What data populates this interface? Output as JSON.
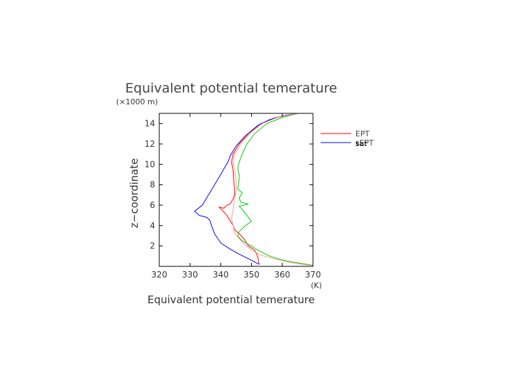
{
  "chart_data": {
    "type": "line",
    "title": "Equivalent potential temerature",
    "xlabel": "Equivalent potential temerature",
    "ylabel": "z−coordinate",
    "x_unit": "(K)",
    "y_unit": "(×1000 m)",
    "xlim": [
      320,
      370
    ],
    "ylim": [
      0,
      15
    ],
    "x_ticks": [
      320,
      330,
      340,
      350,
      360,
      370
    ],
    "y_ticks": [
      2,
      4,
      6,
      8,
      10,
      12,
      14
    ],
    "grid": false,
    "legend_position": "right",
    "series": [
      {
        "name": "EPT",
        "color": "#ff0000",
        "points": [
          [
            352.5,
            0.2
          ],
          [
            352,
            1.0
          ],
          [
            351,
            1.6
          ],
          [
            349,
            2.0
          ],
          [
            348,
            2.5
          ],
          [
            347,
            2.9
          ],
          [
            346,
            3.2
          ],
          [
            344.5,
            3.6
          ],
          [
            344,
            4.0
          ],
          [
            343,
            4.5
          ],
          [
            342,
            5.0
          ],
          [
            340.5,
            5.5
          ],
          [
            339.5,
            5.8
          ],
          [
            341,
            5.7
          ],
          [
            342,
            6.0
          ],
          [
            343,
            6.1
          ],
          [
            344,
            6.6
          ],
          [
            344.5,
            7.0
          ],
          [
            344.5,
            7.5
          ],
          [
            344.2,
            8.5
          ],
          [
            344,
            9.5
          ],
          [
            343.5,
            10.2
          ],
          [
            344,
            11.0
          ],
          [
            346,
            12.0
          ],
          [
            349,
            13.0
          ],
          [
            353,
            14.0
          ],
          [
            358,
            14.6
          ],
          [
            363,
            14.9
          ],
          [
            365,
            15.0
          ]
        ]
      },
      {
        "name": "sat",
        "color": "#00cc00",
        "points": [
          [
            370,
            0.1
          ],
          [
            366,
            0.3
          ],
          [
            362,
            0.5
          ],
          [
            358,
            0.8
          ],
          [
            356,
            1.0
          ],
          [
            352,
            1.6
          ],
          [
            350,
            2.0
          ],
          [
            347,
            2.5
          ],
          [
            345.5,
            3.0
          ],
          [
            346,
            3.4
          ],
          [
            347,
            3.7
          ],
          [
            348,
            4.0
          ],
          [
            349,
            4.2
          ],
          [
            350,
            4.4
          ],
          [
            349,
            4.8
          ],
          [
            348,
            5.2
          ],
          [
            347,
            5.6
          ],
          [
            346,
            5.9
          ],
          [
            349,
            6.1
          ],
          [
            346.5,
            6.3
          ],
          [
            346,
            6.7
          ],
          [
            347,
            7.2
          ],
          [
            345.5,
            7.6
          ],
          [
            346,
            8.5
          ],
          [
            346,
            9.0
          ],
          [
            345.5,
            9.6
          ],
          [
            346,
            10.2
          ],
          [
            347,
            11.0
          ],
          [
            348.5,
            12.0
          ],
          [
            351,
            13.0
          ],
          [
            355,
            14.0
          ],
          [
            360,
            14.6
          ],
          [
            365,
            15.0
          ]
        ]
      },
      {
        "name": "sEPT",
        "color": "#0000ff",
        "points": [
          [
            352.5,
            0.2
          ],
          [
            350,
            0.6
          ],
          [
            346,
            1.2
          ],
          [
            343,
            1.7
          ],
          [
            340,
            2.3
          ],
          [
            338,
            3.2
          ],
          [
            337,
            4.0
          ],
          [
            336.5,
            4.5
          ],
          [
            335.5,
            4.8
          ],
          [
            333,
            5.0
          ],
          [
            331.5,
            5.4
          ],
          [
            334,
            6.0
          ],
          [
            336,
            7.0
          ],
          [
            339,
            8.5
          ],
          [
            341.5,
            9.8
          ],
          [
            342.5,
            10.3
          ],
          [
            343,
            10.8
          ],
          [
            345,
            11.8
          ],
          [
            348,
            12.8
          ],
          [
            352,
            13.8
          ],
          [
            356,
            14.4
          ],
          [
            361,
            14.8
          ],
          [
            365,
            15.0
          ]
        ]
      },
      {
        "name": "",
        "color": "#ff9999",
        "points": [
          [
            369,
            0.1
          ],
          [
            364,
            0.3
          ],
          [
            358,
            0.7
          ],
          [
            353,
            1.1
          ],
          [
            350,
            1.6
          ],
          [
            348,
            2.1
          ],
          [
            346,
            2.7
          ],
          [
            344.5,
            3.3
          ],
          [
            344,
            4.0
          ],
          [
            343.5,
            4.7
          ],
          [
            344,
            5.5
          ],
          [
            344.5,
            6.5
          ],
          [
            345,
            7.5
          ],
          [
            345,
            8.5
          ],
          [
            344.5,
            9.5
          ],
          [
            344,
            10.2
          ],
          [
            344.5,
            11.0
          ],
          [
            346.5,
            12.0
          ],
          [
            349.5,
            13.0
          ],
          [
            353.5,
            14.0
          ],
          [
            358.5,
            14.6
          ],
          [
            363,
            14.9
          ],
          [
            365,
            15.0
          ]
        ]
      }
    ],
    "legend": [
      {
        "label": "EPT",
        "color": "#ff0000"
      },
      {
        "label": "sEPT",
        "color": "#0000ff"
      },
      {
        "label": "sat",
        "color": "#000000"
      }
    ]
  }
}
